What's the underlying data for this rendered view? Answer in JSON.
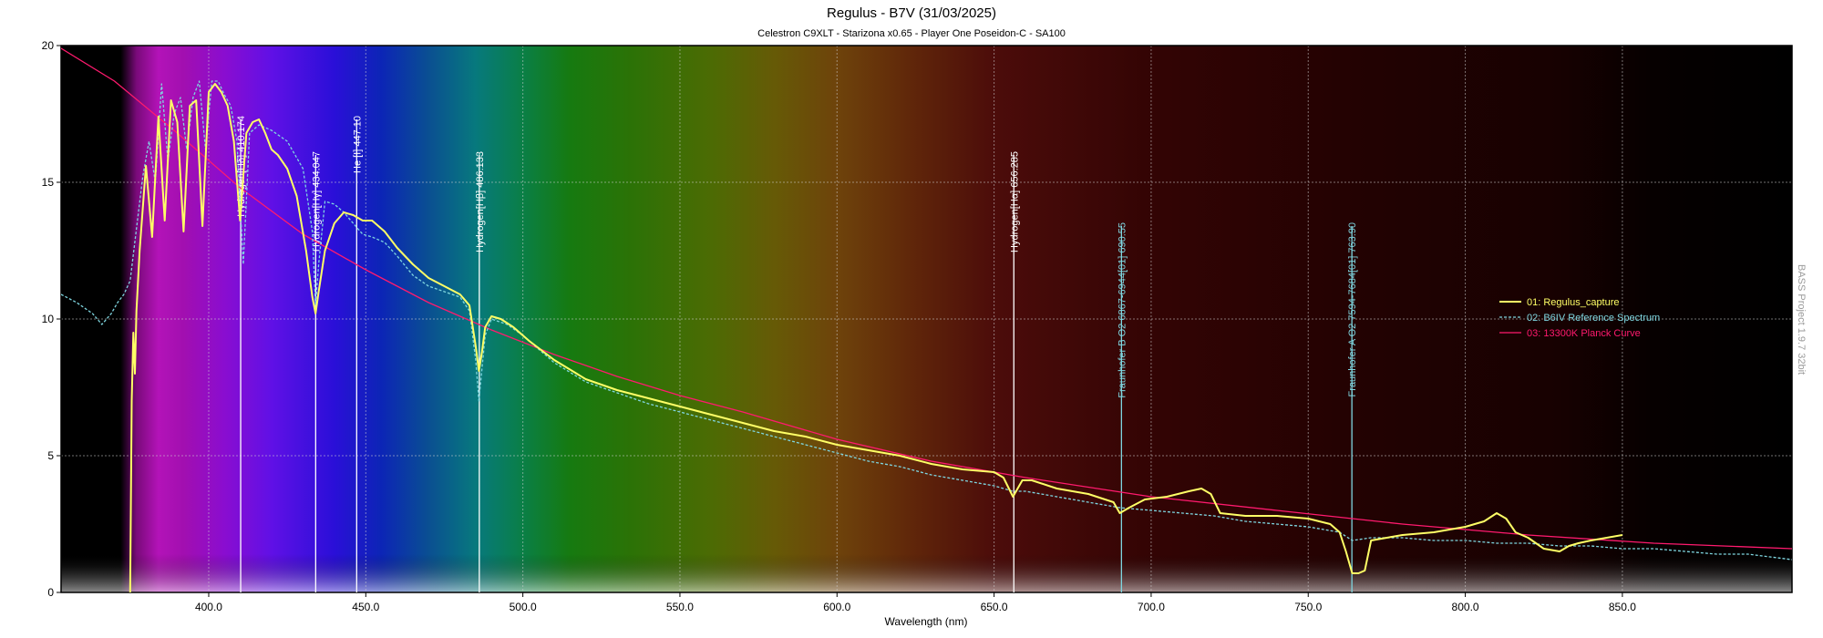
{
  "chart_data": {
    "type": "line",
    "title": "Regulus - B7V (31/03/2025)",
    "subtitle": "Celestron C9XLT - Starizona x0.65 - Player One Poseidon-C - SA100",
    "xlabel": "Wavelength (nm)",
    "ylabel": "",
    "xlim": [
      353,
      904
    ],
    "ylim": [
      0,
      20
    ],
    "x_ticks": [
      400,
      450,
      500,
      550,
      600,
      650,
      700,
      750,
      800,
      850
    ],
    "x_tick_labels": [
      "400.0",
      "450.0",
      "500.0",
      "550.0",
      "600.0",
      "650.0",
      "700.0",
      "750.0",
      "800.0",
      "850.0"
    ],
    "y_ticks": [
      0,
      5,
      10,
      15,
      20
    ],
    "y_tick_labels": [
      "0",
      "5",
      "10",
      "15",
      "20"
    ],
    "grid": true,
    "background": "visible spectrum rainbow",
    "legend_position": "right",
    "watermark": "BASS Project 1.9.7 32bit",
    "spectral_lines": [
      {
        "wavelength": 410.174,
        "label": "Hydrogen[Hδ] 410.174",
        "color": "#ffffff",
        "top_value": 17.3
      },
      {
        "wavelength": 434.047,
        "label": "Hydrogen[Hγ] 434.047",
        "color": "#ffffff",
        "top_value": 16.0
      },
      {
        "wavelength": 447.1,
        "label": "He [I] 447.10",
        "color": "#ffffff",
        "top_value": 17.3
      },
      {
        "wavelength": 486.133,
        "label": "Hydrogen[Hβ] 486.133",
        "color": "#ffffff",
        "top_value": 16.0
      },
      {
        "wavelength": 656.285,
        "label": "Hydrogen[Hα] 656.285",
        "color": "#ffffff",
        "top_value": 16.0
      },
      {
        "wavelength": 690.55,
        "label": "Fraunhofer B  O2 6867-6944[01] 690.55",
        "color": "#7fd6e0",
        "top_value": 13.4
      },
      {
        "wavelength": 763.9,
        "label": "Fraunhofer A  O2 7594-7684[01] 763.90",
        "color": "#7fd6e0",
        "top_value": 13.4
      }
    ],
    "series": [
      {
        "name": "01: Regulus_capture",
        "color": "#ffff66",
        "style": "solid",
        "x": [
          375,
          375.5,
          376,
          376.5,
          377,
          378,
          380,
          382,
          384,
          386,
          388,
          390,
          392,
          394,
          396,
          398,
          400,
          402,
          404,
          406,
          408,
          410,
          412,
          414,
          416,
          418,
          420,
          422,
          425,
          428,
          431,
          433,
          434,
          435,
          437,
          440,
          443,
          446,
          449,
          452,
          456,
          460,
          465,
          470,
          475,
          480,
          483,
          485,
          486,
          487,
          488,
          490,
          493,
          497,
          502,
          510,
          520,
          530,
          540,
          550,
          560,
          570,
          580,
          590,
          600,
          610,
          620,
          630,
          640,
          650,
          653,
          656,
          659,
          662,
          670,
          680,
          688,
          690,
          693,
          698,
          705,
          712,
          716,
          719,
          722,
          730,
          740,
          750,
          757,
          760,
          762,
          764,
          766,
          768,
          770,
          775,
          780,
          790,
          800,
          806,
          810,
          813,
          816,
          820,
          825,
          830,
          833,
          836,
          840,
          845,
          850
        ],
        "y": [
          0,
          7.0,
          9.5,
          8.0,
          10.3,
          12.5,
          15.6,
          13.0,
          17.4,
          13.6,
          18.0,
          17.2,
          13.2,
          17.8,
          18.0,
          13.4,
          18.3,
          18.6,
          18.3,
          17.8,
          16.5,
          13.6,
          16.8,
          17.2,
          17.3,
          16.8,
          16.2,
          16.0,
          15.5,
          14.5,
          12.5,
          10.8,
          10.2,
          11.0,
          12.5,
          13.5,
          13.9,
          13.8,
          13.6,
          13.6,
          13.2,
          12.6,
          12.0,
          11.5,
          11.2,
          10.9,
          10.5,
          9.0,
          8.1,
          8.8,
          9.7,
          10.1,
          10.0,
          9.7,
          9.2,
          8.5,
          7.8,
          7.4,
          7.1,
          6.8,
          6.5,
          6.2,
          5.9,
          5.7,
          5.4,
          5.2,
          5.0,
          4.7,
          4.5,
          4.4,
          4.2,
          3.5,
          4.1,
          4.1,
          3.8,
          3.6,
          3.3,
          2.9,
          3.1,
          3.4,
          3.5,
          3.7,
          3.8,
          3.6,
          2.9,
          2.8,
          2.8,
          2.7,
          2.5,
          2.2,
          1.5,
          0.7,
          0.7,
          0.8,
          1.9,
          2.0,
          2.1,
          2.2,
          2.4,
          2.6,
          2.9,
          2.7,
          2.2,
          2.0,
          1.6,
          1.5,
          1.7,
          1.8,
          1.9,
          2.0,
          2.1
        ]
      },
      {
        "name": "02: B6IV Reference Spectrum",
        "color": "#7fd6e0",
        "style": "dashed",
        "x": [
          353,
          358,
          363,
          366,
          369,
          371,
          373,
          375,
          377,
          379,
          381,
          383,
          385,
          387,
          389,
          391,
          393,
          395,
          397,
          399,
          401,
          403,
          405,
          407,
          409,
          411,
          413,
          416,
          420,
          425,
          430,
          433,
          434,
          435,
          437,
          440,
          443,
          446,
          449,
          452,
          456,
          460,
          465,
          470,
          475,
          480,
          483,
          485,
          486,
          487,
          488,
          490,
          495,
          500,
          510,
          520,
          530,
          540,
          550,
          560,
          570,
          580,
          590,
          600,
          610,
          620,
          630,
          640,
          650,
          656,
          660,
          670,
          680,
          690,
          700,
          710,
          720,
          730,
          740,
          750,
          760,
          764,
          770,
          780,
          790,
          800,
          810,
          820,
          830,
          840,
          850,
          860,
          870,
          880,
          890,
          897,
          904
        ],
        "y": [
          10.9,
          10.6,
          10.2,
          9.8,
          10.2,
          10.6,
          10.9,
          11.4,
          13.3,
          15.2,
          16.5,
          15.0,
          18.6,
          15.8,
          17.5,
          18.1,
          16.2,
          18.1,
          18.7,
          16.2,
          18.7,
          18.7,
          18.2,
          17.8,
          16.5,
          12.0,
          16.8,
          17.1,
          16.9,
          16.5,
          15.5,
          13.2,
          10.5,
          12.0,
          14.3,
          14.2,
          13.9,
          13.5,
          13.1,
          13.0,
          12.8,
          12.3,
          11.6,
          11.2,
          11.0,
          10.8,
          10.3,
          8.5,
          7.0,
          8.2,
          9.4,
          10.0,
          9.8,
          9.4,
          8.4,
          7.7,
          7.3,
          6.9,
          6.6,
          6.3,
          6.0,
          5.7,
          5.4,
          5.1,
          4.8,
          4.6,
          4.3,
          4.1,
          3.9,
          3.7,
          3.7,
          3.5,
          3.3,
          3.1,
          3.0,
          2.9,
          2.8,
          2.6,
          2.5,
          2.4,
          2.2,
          1.9,
          2.0,
          2.0,
          1.9,
          1.9,
          1.8,
          1.8,
          1.7,
          1.7,
          1.6,
          1.6,
          1.5,
          1.4,
          1.4,
          1.3,
          1.2
        ]
      },
      {
        "name": "03: 13300K Planck Curve",
        "color": "#ff1a6e",
        "style": "solid",
        "x": [
          353,
          370,
          390,
          410,
          430,
          450,
          470,
          490,
          510,
          530,
          550,
          570,
          600,
          630,
          660,
          700,
          740,
          780,
          820,
          860,
          904
        ],
        "y": [
          19.9,
          18.7,
          16.8,
          14.8,
          13.1,
          11.8,
          10.6,
          9.6,
          8.7,
          7.9,
          7.2,
          6.6,
          5.6,
          4.8,
          4.2,
          3.5,
          3.0,
          2.5,
          2.1,
          1.8,
          1.6
        ]
      }
    ]
  }
}
